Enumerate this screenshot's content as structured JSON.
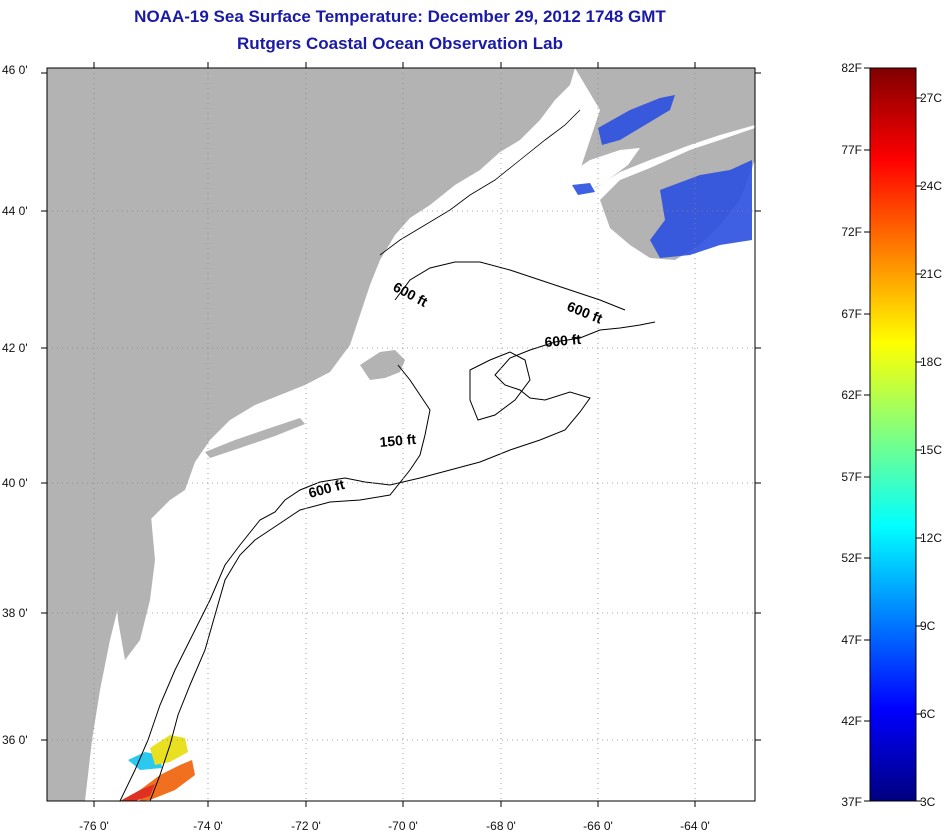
{
  "title": {
    "line1": "NOAA-19 Sea Surface Temperature:  December 29, 2012 1748 GMT",
    "line2": "Rutgers Coastal Ocean Observation Lab"
  },
  "map": {
    "lat_labels": [
      "46 0'",
      "44 0'",
      "42 0'",
      "40 0'",
      "38 0'",
      "36 0'"
    ],
    "lon_labels": [
      "-76 0'",
      "-74 0'",
      "-72 0'",
      "-70 0'",
      "-68 0'",
      "-66 0'",
      "-64 0'"
    ],
    "isobath_labels": [
      "600 ft",
      "600 ft",
      "600 ft",
      "150 ft",
      "600 ft"
    ],
    "colors": {
      "land": "#b3b3b3",
      "ocean": "#ffffff",
      "contour": "#000000",
      "gridline": "#888888"
    }
  },
  "colorbar": {
    "f_labels": [
      "82F",
      "77F",
      "72F",
      "67F",
      "62F",
      "57F",
      "52F",
      "47F",
      "42F",
      "37F"
    ],
    "c_labels": [
      "27C",
      "24C",
      "21C",
      "18C",
      "15C",
      "12C",
      "9C",
      "6C",
      "3C"
    ],
    "gradient_colors": [
      "#000080",
      "#0000ff",
      "#0080ff",
      "#00ffff",
      "#80ff80",
      "#ffff00",
      "#ff8000",
      "#ff0000",
      "#800000"
    ]
  }
}
